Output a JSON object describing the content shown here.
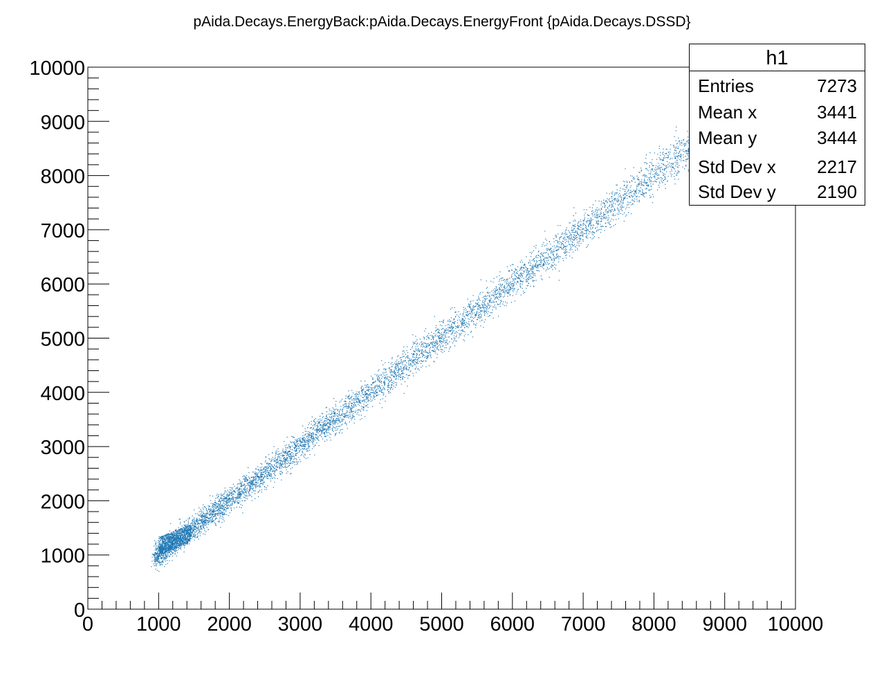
{
  "chart_data": {
    "type": "scatter",
    "title": "pAida.Decays.EnergyBack:pAida.Decays.EnergyFront {pAida.Decays.DSSD}",
    "xlim": [
      0,
      10000
    ],
    "ylim": [
      0,
      10000
    ],
    "x_ticks": [
      "0",
      "1000",
      "2000",
      "3000",
      "4000",
      "5000",
      "6000",
      "7000",
      "8000",
      "9000",
      "10000"
    ],
    "y_ticks": [
      "0",
      "1000",
      "2000",
      "3000",
      "4000",
      "5000",
      "6000",
      "7000",
      "8000",
      "9000",
      "10000"
    ],
    "marker_color": "#1f77b4",
    "grid": false,
    "band": {
      "x_range": [
        950,
        8700
      ],
      "slope": 1.0,
      "spread": 120,
      "dense_cluster": {
        "x": [
          1000,
          1450
        ],
        "y": [
          1000,
          1600
        ]
      }
    },
    "stats_box": {
      "name": "h1",
      "rows": [
        {
          "label": "Entries",
          "value": "7273"
        },
        {
          "label": "Mean x",
          "value": "3441"
        },
        {
          "label": "Mean y",
          "value": "3444"
        },
        {
          "label": "Std Dev x",
          "value": "2217"
        },
        {
          "label": "Std Dev y",
          "value": "2190"
        }
      ]
    }
  }
}
